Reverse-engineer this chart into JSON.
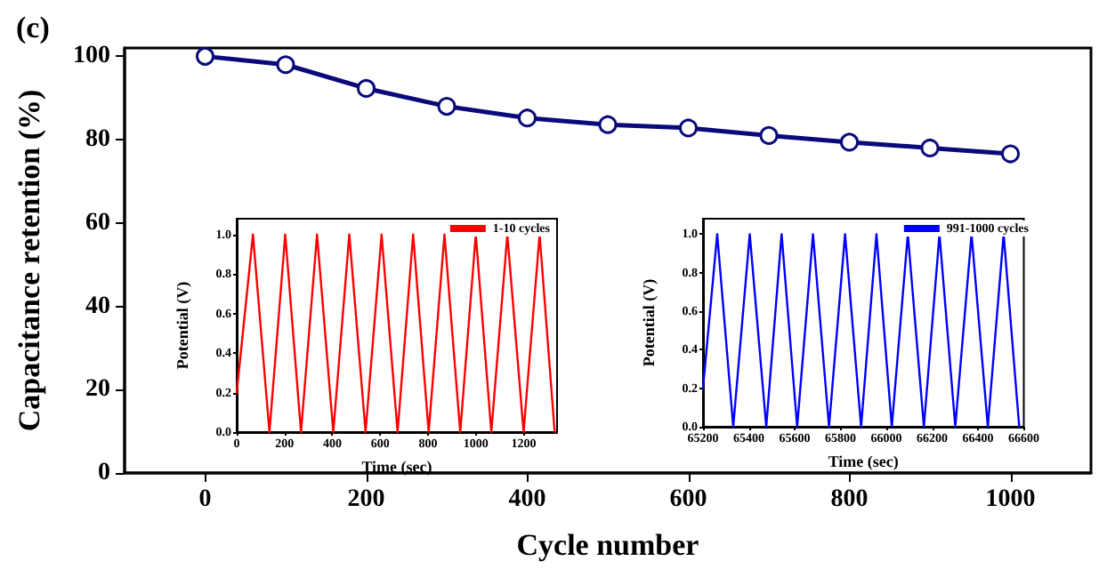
{
  "chart_data": [
    {
      "type": "line",
      "title": "(c)",
      "xlabel": "Cycle number",
      "ylabel": "Capacitance retention (%)",
      "x": [
        0,
        100,
        200,
        300,
        400,
        500,
        600,
        700,
        800,
        900,
        1000
      ],
      "series": [
        {
          "color": "#0a0a7a",
          "values": [
            100,
            98,
            92.3,
            88,
            85.2,
            83.6,
            82.8,
            81,
            79.4,
            78,
            76.6
          ]
        }
      ],
      "xlim": [
        -100,
        1100
      ],
      "xticks": [
        0,
        200,
        400,
        600,
        800,
        1000
      ],
      "ylim": [
        0,
        102
      ],
      "yticks": [
        0,
        20,
        40,
        60,
        80,
        100
      ],
      "marker": "circle",
      "line_style": "solid",
      "grid": false,
      "legend": false
    },
    {
      "type": "line",
      "xlabel": "Time (sec)",
      "ylabel": "Potential (V)",
      "legend": "top right",
      "marker": "none",
      "grid": false,
      "series": [
        {
          "name": "1-10 cycles",
          "color": "#ff0000",
          "x": [
            0,
            68,
            137,
            203,
            269,
            336,
            404,
            471,
            539,
            606,
            673,
            738,
            803,
            869,
            935,
            1000,
            1065,
            1132,
            1200,
            1267,
            1330
          ],
          "values": [
            0.2,
            1,
            0,
            1,
            0,
            1,
            0,
            1,
            0,
            1,
            0,
            1,
            0,
            1,
            0,
            1,
            0,
            1,
            0,
            1,
            0
          ]
        }
      ],
      "xlim": [
        0,
        1340
      ],
      "xticks": [
        0,
        200,
        400,
        600,
        800,
        1000,
        1200
      ],
      "ylim": [
        0,
        1.08
      ],
      "yticks": [
        {
          "value": 0,
          "label": "0.0"
        },
        {
          "value": 0.2,
          "label": "0.2"
        },
        {
          "value": 0.4,
          "label": "0.4"
        },
        {
          "value": 0.6,
          "label": "0.6"
        },
        {
          "value": 0.8,
          "label": "0.8"
        },
        {
          "value": 1,
          "label": "1.0"
        }
      ]
    },
    {
      "type": "line",
      "xlabel": "Time (sec)",
      "ylabel": "Potential (V)",
      "legend": "top right",
      "marker": "none",
      "grid": false,
      "series": [
        {
          "name": "991-1000 cycles",
          "color": "#0000ff",
          "x": [
            65200,
            65262,
            65332,
            65404,
            65476,
            65543,
            65611,
            65680,
            65750,
            65820,
            65890,
            65957,
            66024,
            66094,
            66164,
            66232,
            66301,
            66372,
            66443,
            66512,
            66580
          ],
          "values": [
            0.2,
            1,
            0,
            1,
            0,
            1,
            0,
            1,
            0,
            1,
            0,
            1,
            0,
            1,
            0,
            1,
            0,
            1,
            0,
            1,
            0
          ]
        }
      ],
      "xlim": [
        65200,
        66600
      ],
      "xticks": [
        65200,
        65400,
        65600,
        65800,
        66000,
        66200,
        66400,
        66600
      ],
      "ylim": [
        0,
        1.08
      ],
      "yticks": [
        {
          "value": 0,
          "label": "0.0"
        },
        {
          "value": 0.2,
          "label": "0.2"
        },
        {
          "value": 0.4,
          "label": "0.4"
        },
        {
          "value": 0.6,
          "label": "0.6"
        },
        {
          "value": 0.8,
          "label": "0.8"
        },
        {
          "value": 1,
          "label": "1.0"
        }
      ]
    }
  ]
}
